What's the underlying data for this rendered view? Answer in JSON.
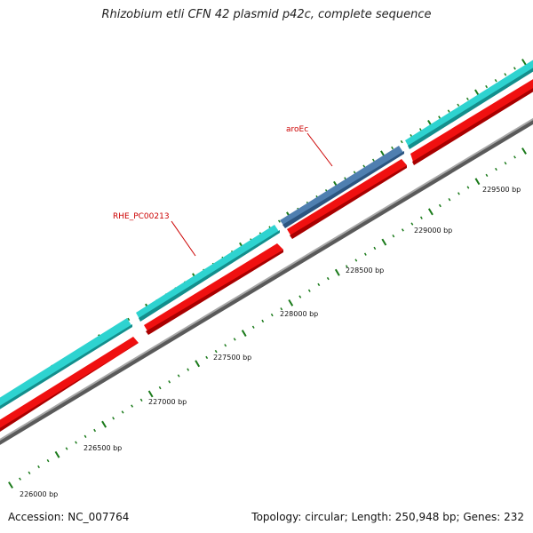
{
  "title": "Rhizobium etli CFN 42 plasmid p42c, complete sequence",
  "footer": {
    "accession": "Accession: NC_007764",
    "stats": "Topology: circular; Length: 250,948 bp; Genes: 232"
  },
  "colors": {
    "cds_forward": "#2ed3d0",
    "cds_selected": "#4f7fb0",
    "cds_reverse": "#f01010",
    "backbone": "#8c8c8c",
    "ticks": "#1a7a1a",
    "gene_label": "#cc0000"
  },
  "scale_labels": [
    "226000 bp",
    "226500 bp",
    "227000 bp",
    "227500 bp",
    "228000 bp",
    "228500 bp",
    "229000 bp",
    "229500 bp"
  ],
  "gene_labels": [
    "aroEc",
    "RHE_PC00213"
  ]
}
